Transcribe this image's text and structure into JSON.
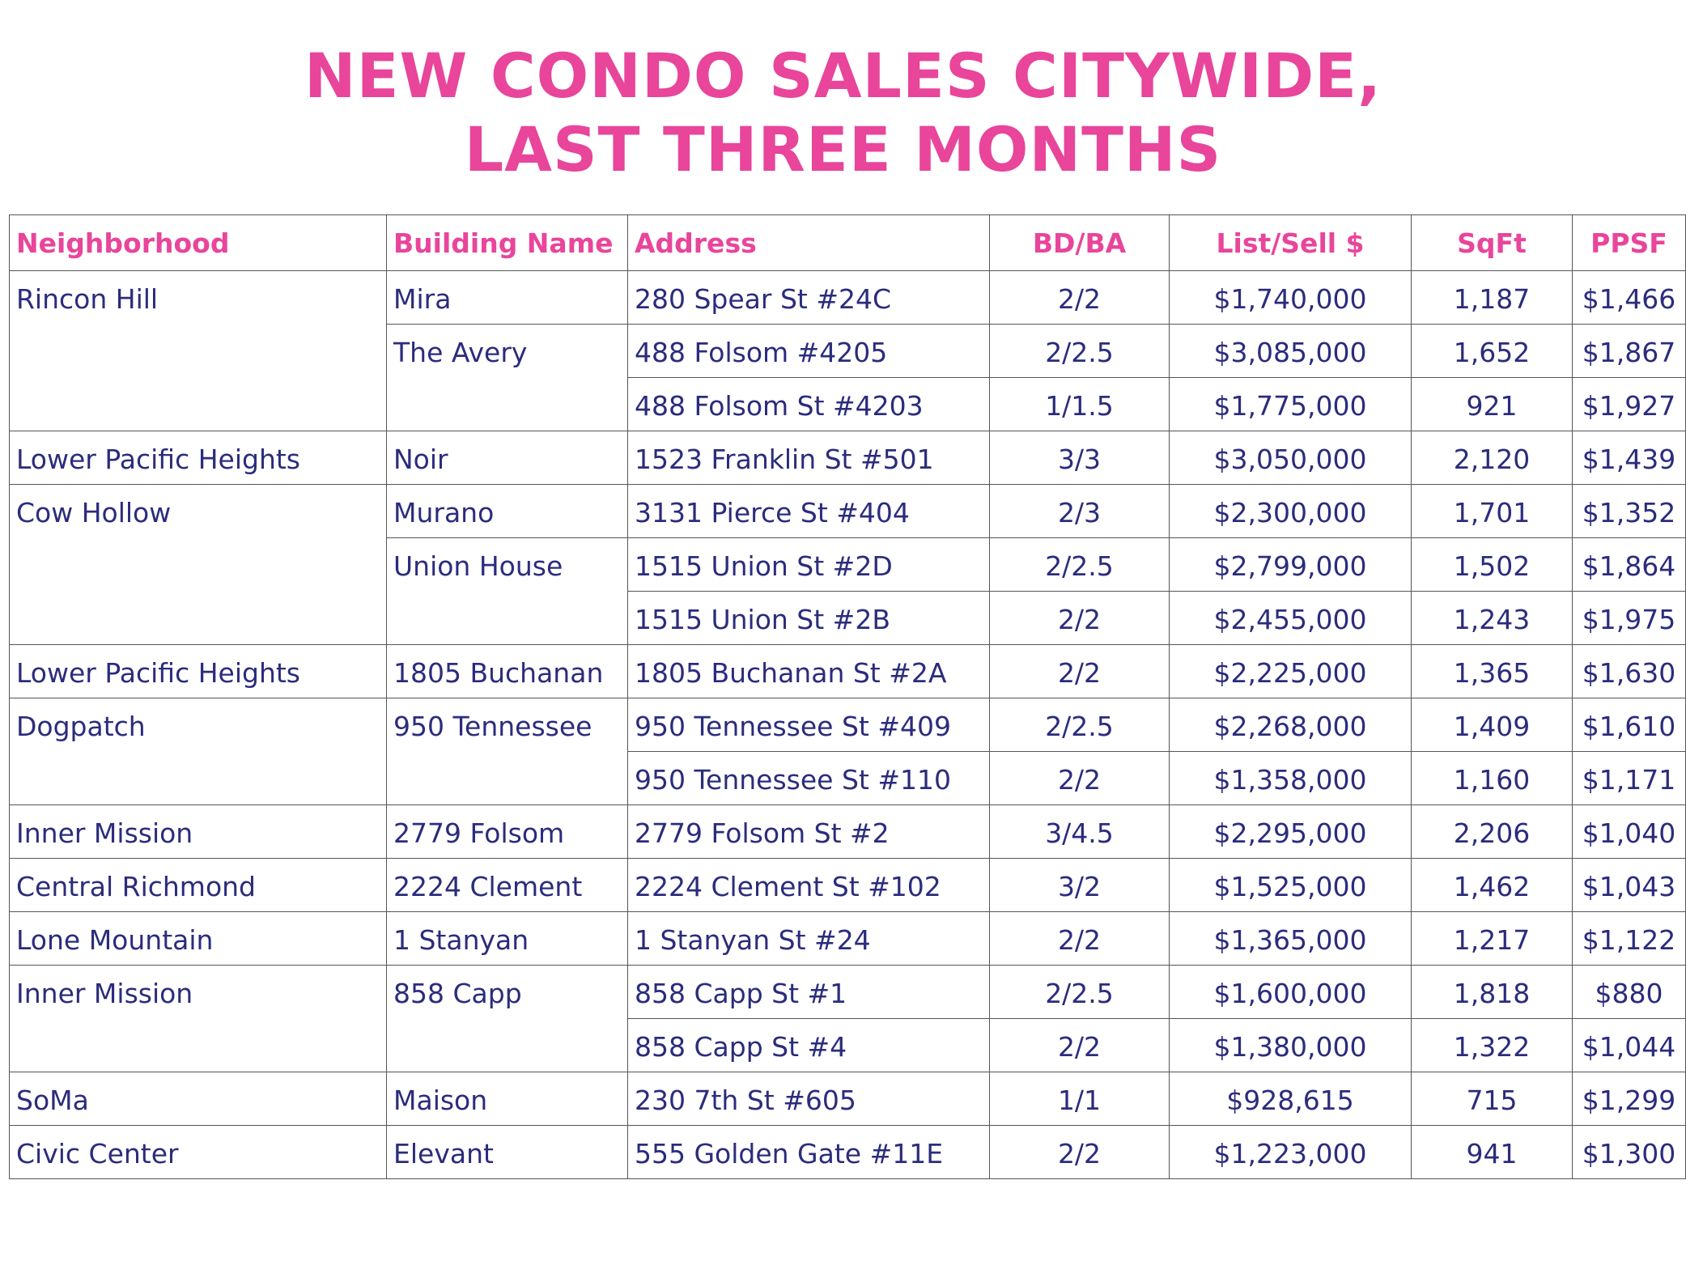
{
  "chart_data": {
    "type": "table",
    "title": [
      "NEW CONDO SALES CITYWIDE,",
      "LAST THREE MONTHS"
    ],
    "columns": [
      "Neighborhood",
      "Building Name",
      "Address",
      "BD/BA",
      "List/Sell $",
      "SqFt",
      "PPSF"
    ],
    "groups": [
      {
        "neighborhood": "Rincon Hill",
        "buildings": [
          {
            "name": "Mira",
            "units": [
              {
                "address": "280 Spear St #24C",
                "bdba": "2/2",
                "price": "$1,740,000",
                "sqft": "1,187",
                "ppsf": "$1,466"
              }
            ]
          },
          {
            "name": "The Avery",
            "units": [
              {
                "address": "488 Folsom #4205",
                "bdba": "2/2.5",
                "price": "$3,085,000",
                "sqft": "1,652",
                "ppsf": "$1,867"
              },
              {
                "address": "488 Folsom St #4203",
                "bdba": "1/1.5",
                "price": "$1,775,000",
                "sqft": "921",
                "ppsf": "$1,927"
              }
            ]
          }
        ]
      },
      {
        "neighborhood": "Lower Pacific Heights",
        "buildings": [
          {
            "name": "Noir",
            "units": [
              {
                "address": "1523 Franklin St #501",
                "bdba": "3/3",
                "price": "$3,050,000",
                "sqft": "2,120",
                "ppsf": "$1,439"
              }
            ]
          }
        ]
      },
      {
        "neighborhood": "Cow Hollow",
        "buildings": [
          {
            "name": "Murano",
            "units": [
              {
                "address": "3131 Pierce St #404",
                "bdba": "2/3",
                "price": "$2,300,000",
                "sqft": "1,701",
                "ppsf": "$1,352"
              }
            ]
          },
          {
            "name": "Union House",
            "units": [
              {
                "address": "1515 Union St #2D",
                "bdba": "2/2.5",
                "price": "$2,799,000",
                "sqft": "1,502",
                "ppsf": "$1,864"
              },
              {
                "address": "1515 Union St #2B",
                "bdba": "2/2",
                "price": "$2,455,000",
                "sqft": "1,243",
                "ppsf": "$1,975"
              }
            ]
          }
        ]
      },
      {
        "neighborhood": "Lower Pacific Heights",
        "buildings": [
          {
            "name": "1805 Buchanan",
            "units": [
              {
                "address": "1805 Buchanan St #2A",
                "bdba": "2/2",
                "price": "$2,225,000",
                "sqft": "1,365",
                "ppsf": "$1,630"
              }
            ]
          }
        ]
      },
      {
        "neighborhood": "Dogpatch",
        "buildings": [
          {
            "name": "950 Tennessee",
            "units": [
              {
                "address": "950 Tennessee St #409",
                "bdba": "2/2.5",
                "price": "$2,268,000",
                "sqft": "1,409",
                "ppsf": "$1,610"
              },
              {
                "address": "950 Tennessee St #110",
                "bdba": "2/2",
                "price": "$1,358,000",
                "sqft": "1,160",
                "ppsf": "$1,171"
              }
            ]
          }
        ]
      },
      {
        "neighborhood": "Inner Mission",
        "buildings": [
          {
            "name": "2779 Folsom",
            "units": [
              {
                "address": "2779 Folsom St #2",
                "bdba": "3/4.5",
                "price": "$2,295,000",
                "sqft": "2,206",
                "ppsf": "$1,040"
              }
            ]
          }
        ]
      },
      {
        "neighborhood": "Central Richmond",
        "buildings": [
          {
            "name": "2224 Clement",
            "units": [
              {
                "address": "2224 Clement St #102",
                "bdba": "3/2",
                "price": "$1,525,000",
                "sqft": "1,462",
                "ppsf": "$1,043"
              }
            ]
          }
        ]
      },
      {
        "neighborhood": "Lone Mountain",
        "buildings": [
          {
            "name": "1 Stanyan",
            "units": [
              {
                "address": "1 Stanyan St #24",
                "bdba": "2/2",
                "price": "$1,365,000",
                "sqft": "1,217",
                "ppsf": "$1,122"
              }
            ]
          }
        ]
      },
      {
        "neighborhood": "Inner Mission",
        "buildings": [
          {
            "name": "858 Capp",
            "units": [
              {
                "address": "858 Capp St #1",
                "bdba": "2/2.5",
                "price": "$1,600,000",
                "sqft": "1,818",
                "ppsf": "$880"
              },
              {
                "address": "858 Capp St #4",
                "bdba": "2/2",
                "price": "$1,380,000",
                "sqft": "1,322",
                "ppsf": "$1,044"
              }
            ]
          }
        ]
      },
      {
        "neighborhood": "SoMa",
        "buildings": [
          {
            "name": "Maison",
            "units": [
              {
                "address": "230 7th St #605",
                "bdba": "1/1",
                "price": "$928,615",
                "sqft": "715",
                "ppsf": "$1,299"
              }
            ]
          }
        ]
      },
      {
        "neighborhood": "Civic Center",
        "buildings": [
          {
            "name": "Elevant",
            "units": [
              {
                "address": "555 Golden Gate #11E",
                "bdba": "2/2",
                "price": "$1,223,000",
                "sqft": "941",
                "ppsf": "$1,300"
              }
            ]
          }
        ]
      }
    ],
    "colors": {
      "header": "#e8459b",
      "body_text": "#2b2c7c",
      "grid": "#555555"
    }
  }
}
